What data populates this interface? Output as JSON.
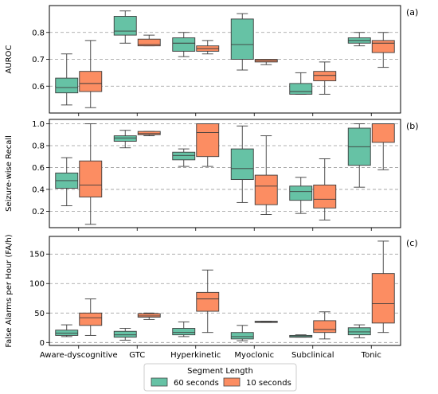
{
  "chart_data": {
    "type": "box",
    "categories": [
      "Aware-dyscognitive",
      "GTC",
      "Hyperkinetic",
      "Myoclonic",
      "Subclinical",
      "Tonic"
    ],
    "legend": {
      "title": "Segment Length",
      "placement": "bottom-center",
      "entries": [
        {
          "name": "60 seconds",
          "color": "#66c2a5"
        },
        {
          "name": "10 seconds",
          "color": "#fc8d62"
        }
      ]
    },
    "panels": [
      {
        "tag": "(a)",
        "ylabel": "AUROC",
        "ylim": [
          0.5,
          0.9
        ],
        "yticks": [
          0.6,
          0.7,
          0.8
        ],
        "ytick_labels": [
          "0.6",
          "0.7",
          "0.8"
        ],
        "series": [
          {
            "name": "60 seconds",
            "boxes": [
              [
                0.53,
                0.575,
                0.595,
                0.63,
                0.72
              ],
              [
                0.76,
                0.79,
                0.805,
                0.86,
                0.88
              ],
              [
                0.71,
                0.73,
                0.76,
                0.78,
                0.8
              ],
              [
                0.66,
                0.7,
                0.755,
                0.85,
                0.87
              ],
              [
                0.57,
                0.57,
                0.58,
                0.61,
                0.65
              ],
              [
                0.75,
                0.76,
                0.77,
                0.78,
                0.8
              ]
            ]
          },
          {
            "name": "10 seconds",
            "boxes": [
              [
                0.52,
                0.58,
                0.61,
                0.655,
                0.77
              ],
              [
                0.75,
                0.75,
                0.755,
                0.775,
                0.79
              ],
              [
                0.72,
                0.73,
                0.74,
                0.75,
                0.77
              ],
              [
                0.68,
                0.69,
                0.695,
                0.7,
                0.7
              ],
              [
                0.57,
                0.62,
                0.64,
                0.655,
                0.69
              ],
              [
                0.67,
                0.725,
                0.76,
                0.77,
                0.8
              ]
            ]
          }
        ]
      },
      {
        "tag": "(b)",
        "ylabel": "Seizure-wise Recall",
        "ylim": [
          0.05,
          1.04
        ],
        "yticks": [
          0.2,
          0.4,
          0.6,
          0.8,
          1.0
        ],
        "ytick_labels": [
          "0.2",
          "0.4",
          "0.6",
          "0.8",
          "1.0"
        ],
        "series": [
          {
            "name": "60 seconds",
            "boxes": [
              [
                0.25,
                0.41,
                0.48,
                0.55,
                0.69
              ],
              [
                0.78,
                0.84,
                0.87,
                0.89,
                0.94
              ],
              [
                0.61,
                0.67,
                0.71,
                0.74,
                0.77
              ],
              [
                0.28,
                0.49,
                0.59,
                0.77,
                0.98
              ],
              [
                0.18,
                0.3,
                0.38,
                0.43,
                0.51
              ],
              [
                0.42,
                0.62,
                0.79,
                0.96,
                1.0
              ]
            ]
          },
          {
            "name": "10 seconds",
            "boxes": [
              [
                0.08,
                0.33,
                0.44,
                0.66,
                1.0
              ],
              [
                0.89,
                0.9,
                0.91,
                0.93,
                0.93
              ],
              [
                0.61,
                0.7,
                0.92,
                1.0,
                1.0
              ],
              [
                0.17,
                0.26,
                0.43,
                0.53,
                0.89
              ],
              [
                0.12,
                0.23,
                0.31,
                0.44,
                0.68
              ],
              [
                0.58,
                0.83,
                1.0,
                1.0,
                1.0
              ]
            ]
          }
        ]
      },
      {
        "tag": "(c)",
        "ylabel": "False Alarms per Hour (FA/h)",
        "ylim": [
          -5,
          180
        ],
        "yticks": [
          0,
          50,
          100,
          150
        ],
        "ytick_labels": [
          "0",
          "50",
          "100",
          "150"
        ],
        "series": [
          {
            "name": "60 seconds",
            "boxes": [
              [
                10,
                12,
                16,
                21,
                30
              ],
              [
                4,
                9,
                13,
                19,
                24
              ],
              [
                10,
                13,
                17,
                24,
                35
              ],
              [
                3,
                6,
                10,
                17,
                29
              ],
              [
                9,
                9,
                10,
                12,
                13
              ],
              [
                8,
                13,
                18,
                25,
                30
              ]
            ]
          },
          {
            "name": "10 seconds",
            "boxes": [
              [
                12,
                29,
                42,
                50,
                74
              ],
              [
                39,
                43,
                45,
                49,
                50
              ],
              [
                17,
                53,
                74,
                85,
                123
              ],
              [
                34,
                34,
                35,
                36,
                36
              ],
              [
                6,
                17,
                22,
                37,
                52
              ],
              [
                17,
                33,
                66,
                117,
                172
              ]
            ]
          }
        ]
      }
    ]
  }
}
